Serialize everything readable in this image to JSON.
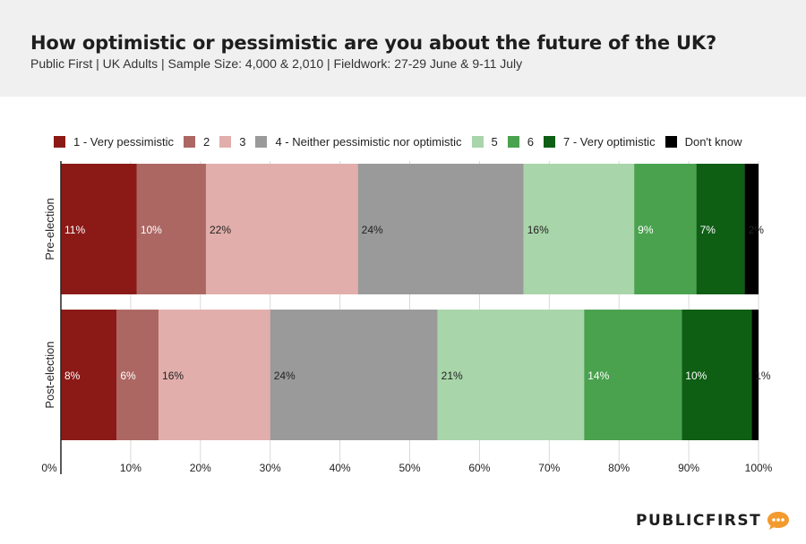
{
  "header": {
    "title": "How optimistic or pessimistic are you about the future of the UK?",
    "subtitle": "Public First | UK Adults | Sample Size: 4,000 & 2,010 | Fieldwork:  27-29 June & 9-11 July"
  },
  "logo": {
    "text": "PUBLICFIRST"
  },
  "chart_data": {
    "type": "bar",
    "orientation": "horizontal",
    "stacked": true,
    "categories": [
      "Pre-election",
      "Post-election"
    ],
    "series": [
      {
        "name": "1 - Very pessimistic",
        "color": "#8b1a17",
        "values": [
          11,
          8
        ],
        "labels": [
          "11%",
          "8%"
        ]
      },
      {
        "name": "2",
        "color": "#ad6763",
        "values": [
          10,
          6
        ],
        "labels": [
          "10%",
          "6%"
        ]
      },
      {
        "name": "3",
        "color": "#e1aeab",
        "values": [
          22,
          16
        ],
        "labels": [
          "22%",
          "16%"
        ]
      },
      {
        "name": "4 - Neither pessimistic nor optimistic",
        "color": "#9a9a9a",
        "values": [
          24,
          24
        ],
        "labels": [
          "24%",
          "24%"
        ]
      },
      {
        "name": "5",
        "color": "#a8d5aa",
        "values": [
          16,
          21
        ],
        "labels": [
          "16%",
          "21%"
        ]
      },
      {
        "name": "6",
        "color": "#4aa24e",
        "values": [
          9,
          14
        ],
        "labels": [
          "9%",
          "14%"
        ]
      },
      {
        "name": "7 - Very optimistic",
        "color": "#0e5e14",
        "values": [
          7,
          10
        ],
        "labels": [
          "7%",
          "10%"
        ]
      },
      {
        "name": "Don't know",
        "color": "#000000",
        "values": [
          2,
          1
        ],
        "labels": [
          "2%",
          "1%"
        ]
      }
    ],
    "xticks": [
      "0%",
      "10%",
      "20%",
      "30%",
      "40%",
      "50%",
      "60%",
      "70%",
      "80%",
      "90%",
      "100%"
    ],
    "xlim": [
      0,
      100
    ],
    "legend": "top",
    "grid": true
  }
}
